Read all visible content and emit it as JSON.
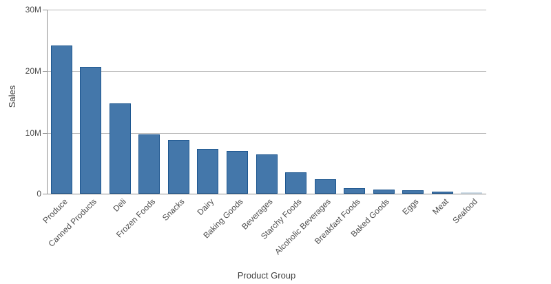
{
  "chart_data": {
    "type": "bar",
    "title": "",
    "xlabel": "Product Group",
    "ylabel": "Sales",
    "categories": [
      "Produce",
      "Canned Products",
      "Deli",
      "Frozen Foods",
      "Snacks",
      "Dairy",
      "Baking Goods",
      "Beverages",
      "Starchy Foods",
      "Alcoholic Beverages",
      "Breakfast Foods",
      "Baked Goods",
      "Eggs",
      "Meat",
      "Seafood"
    ],
    "values_millions": [
      24.1,
      20.6,
      14.7,
      9.6,
      8.7,
      7.3,
      6.9,
      6.4,
      3.5,
      2.4,
      0.9,
      0.7,
      0.55,
      0.35,
      0.2
    ],
    "y_ticks": [
      {
        "value": 0,
        "label": "0"
      },
      {
        "value": 10,
        "label": "10M"
      },
      {
        "value": 20,
        "label": "20M"
      },
      {
        "value": 30,
        "label": "30M"
      }
    ],
    "ylim_millions": [
      0,
      30
    ],
    "grid": "horizontal gridlines at 10M intervals",
    "legend": "none",
    "colors": {
      "bar_fill": "#4477aa",
      "bar_border": "#1d568f",
      "tiny_bar_fill": "#ccdae6",
      "grid_color": "#b3b3b3",
      "axis_color": "#8c8c8c",
      "tick_text": "#4d4d4d",
      "title_text": "#404040",
      "background": "#ffffff"
    }
  }
}
